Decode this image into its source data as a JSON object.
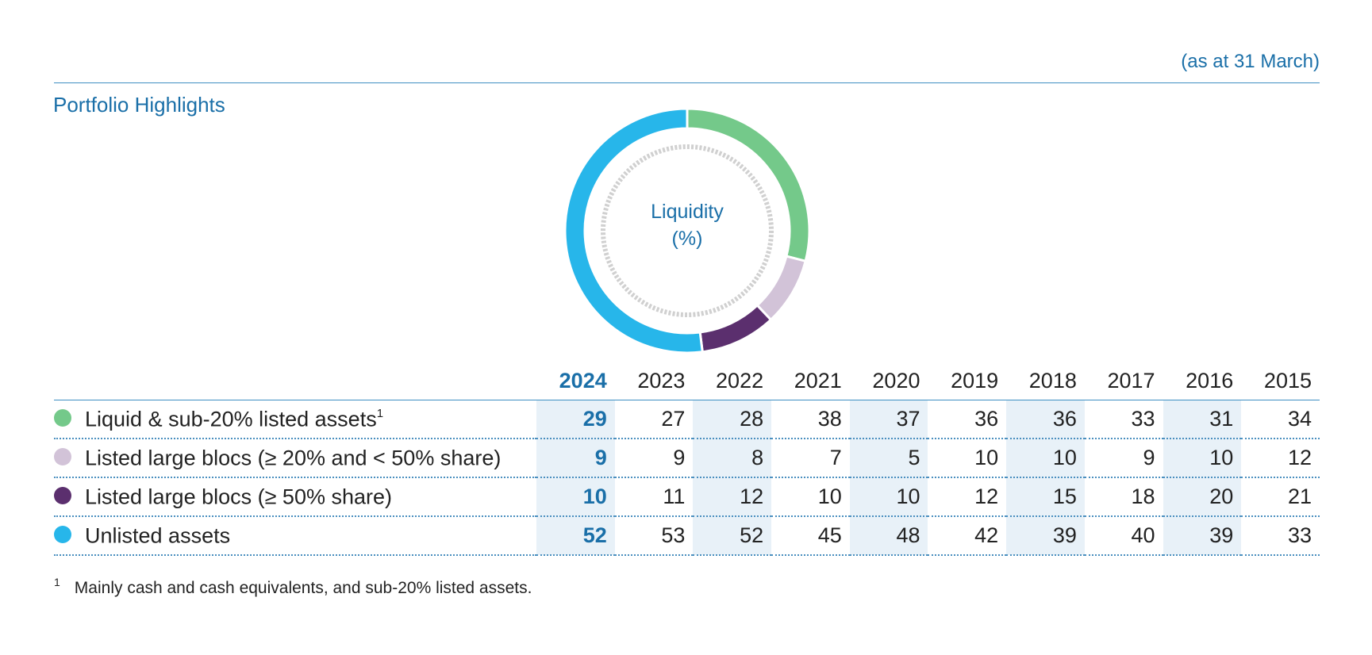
{
  "header": {
    "as_at": "(as at 31 March)",
    "section_title": "Portfolio Highlights"
  },
  "donut": {
    "center_line1": "Liquidity",
    "center_line2": "(%)"
  },
  "colors": {
    "liquid": "#74c98a",
    "blocs_20_50": "#d2c3d8",
    "blocs_50": "#5b2f6e",
    "unlisted": "#27b6ea",
    "accent": "#1a6fa8",
    "inner_ring": "#d0d0d0"
  },
  "footnote": {
    "marker": "1",
    "text": "Mainly cash and cash equivalents, and sub-20% listed assets."
  },
  "chart_data": {
    "type": "table",
    "current_year": "2024",
    "years": [
      "2024",
      "2023",
      "2022",
      "2021",
      "2020",
      "2019",
      "2018",
      "2017",
      "2016",
      "2015"
    ],
    "series": [
      {
        "name": "Liquid & sub-20% listed assets",
        "footnote_ref": "1",
        "color_key": "liquid",
        "values": [
          29,
          27,
          28,
          38,
          37,
          36,
          36,
          33,
          31,
          34
        ]
      },
      {
        "name": "Listed large blocs (≥ 20% and < 50% share)",
        "color_key": "blocs_20_50",
        "values": [
          9,
          9,
          8,
          7,
          5,
          10,
          10,
          9,
          10,
          12
        ]
      },
      {
        "name": "Listed large blocs (≥ 50% share)",
        "color_key": "blocs_50",
        "values": [
          10,
          11,
          12,
          10,
          10,
          12,
          15,
          18,
          20,
          21
        ]
      },
      {
        "name": "Unlisted assets",
        "color_key": "unlisted",
        "values": [
          52,
          53,
          52,
          45,
          48,
          42,
          39,
          40,
          39,
          33
        ]
      }
    ],
    "donut": {
      "type": "pie",
      "year": "2024",
      "slices": [
        {
          "series": "Liquid & sub-20% listed assets",
          "value": 29
        },
        {
          "series": "Listed large blocs (≥ 20% and < 50% share)",
          "value": 9
        },
        {
          "series": "Listed large blocs (≥ 50% share)",
          "value": 10
        },
        {
          "series": "Unlisted assets",
          "value": 52
        }
      ]
    }
  }
}
